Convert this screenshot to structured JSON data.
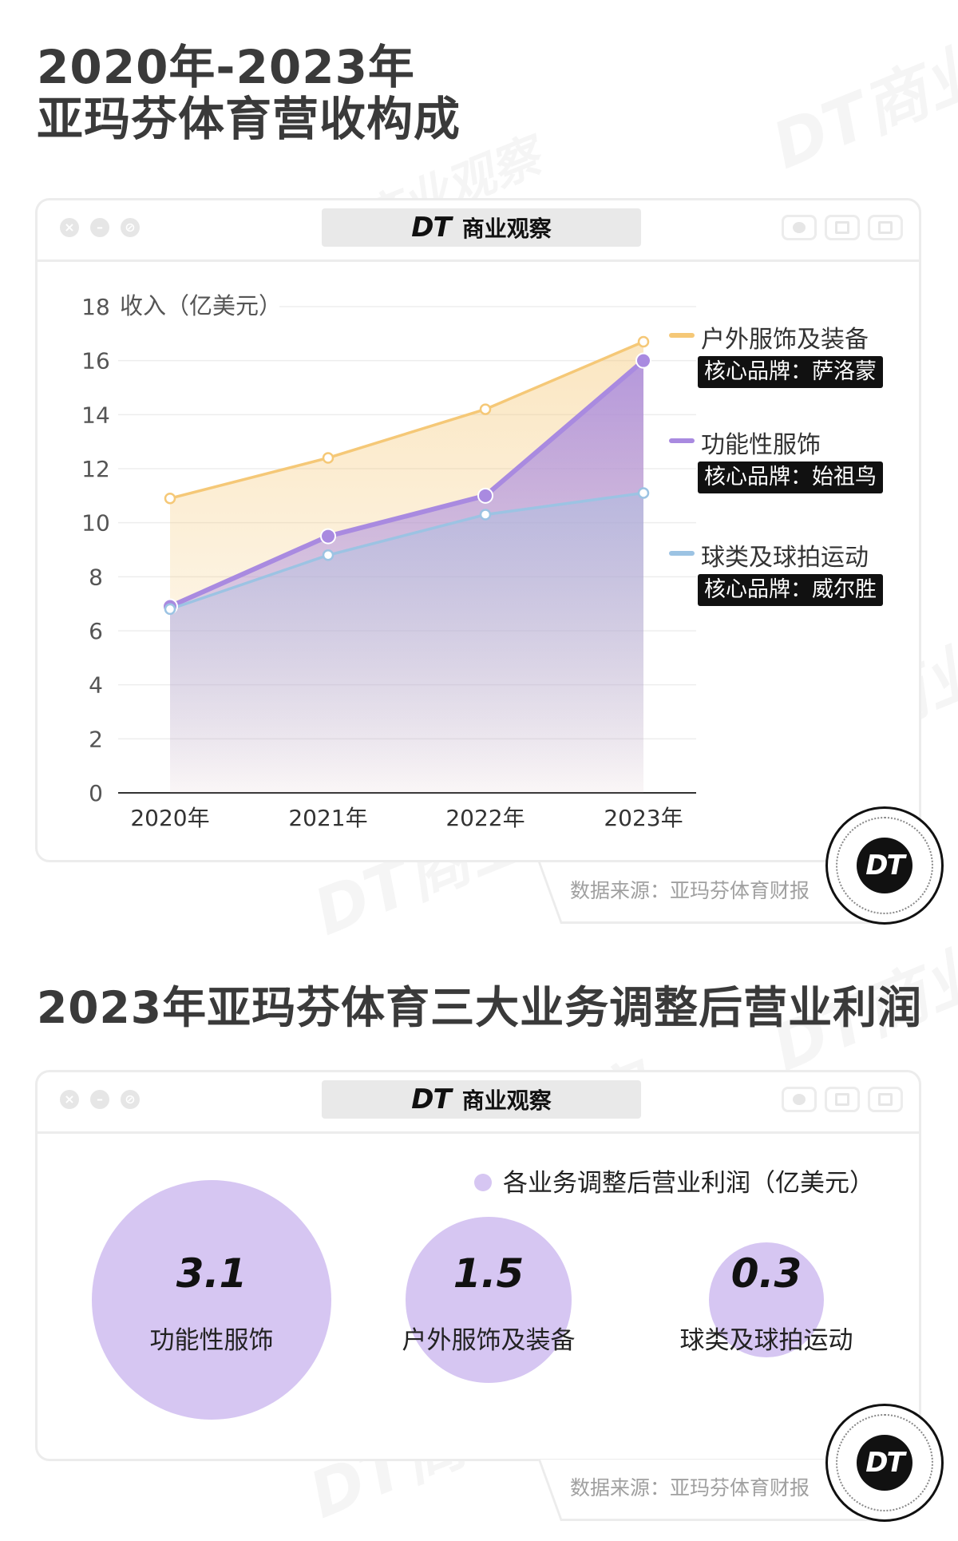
{
  "section1": {
    "title_line1": "2020年-2023年",
    "title_line2": "亚玛芬体育营收构成"
  },
  "section2": {
    "title": "2023年亚玛芬体育三大业务调整后营业利润"
  },
  "brand": {
    "dt_text": "DT",
    "name": "商业观察"
  },
  "source_text": "数据来源：亚玛芬体育财报",
  "chart_data": [
    {
      "type": "line",
      "title": "",
      "ylabel": "收入（亿美元）",
      "xlabel": "",
      "ylim": [
        0,
        18
      ],
      "yticks": [
        0,
        2,
        4,
        6,
        8,
        10,
        12,
        14,
        16,
        18
      ],
      "categories": [
        "2020年",
        "2021年",
        "2022年",
        "2023年"
      ],
      "grid": true,
      "legend_position": "right",
      "series": [
        {
          "name": "户外服饰及装备",
          "brand": "核心品牌：萨洛蒙",
          "color": "#f5c877",
          "values": [
            10.9,
            12.4,
            14.2,
            16.7
          ]
        },
        {
          "name": "功能性服饰",
          "brand": "核心品牌：始祖鸟",
          "color": "#a98ae0",
          "values": [
            6.9,
            9.5,
            11.0,
            16.0
          ]
        },
        {
          "name": "球类及球拍运动",
          "brand": "核心品牌：威尔胜",
          "color": "#9cc3e3",
          "values": [
            6.8,
            8.8,
            10.3,
            11.1
          ]
        }
      ]
    },
    {
      "type": "bubble",
      "title": "",
      "legend": "各业务调整后营业利润（亿美元）",
      "color": "#d6c6f2",
      "categories": [
        "功能性服饰",
        "户外服饰及装备",
        "球类及球拍运动"
      ],
      "values": [
        3.1,
        1.5,
        0.3
      ],
      "value_labels": [
        "3.1",
        "1.5",
        "0.3"
      ]
    }
  ]
}
